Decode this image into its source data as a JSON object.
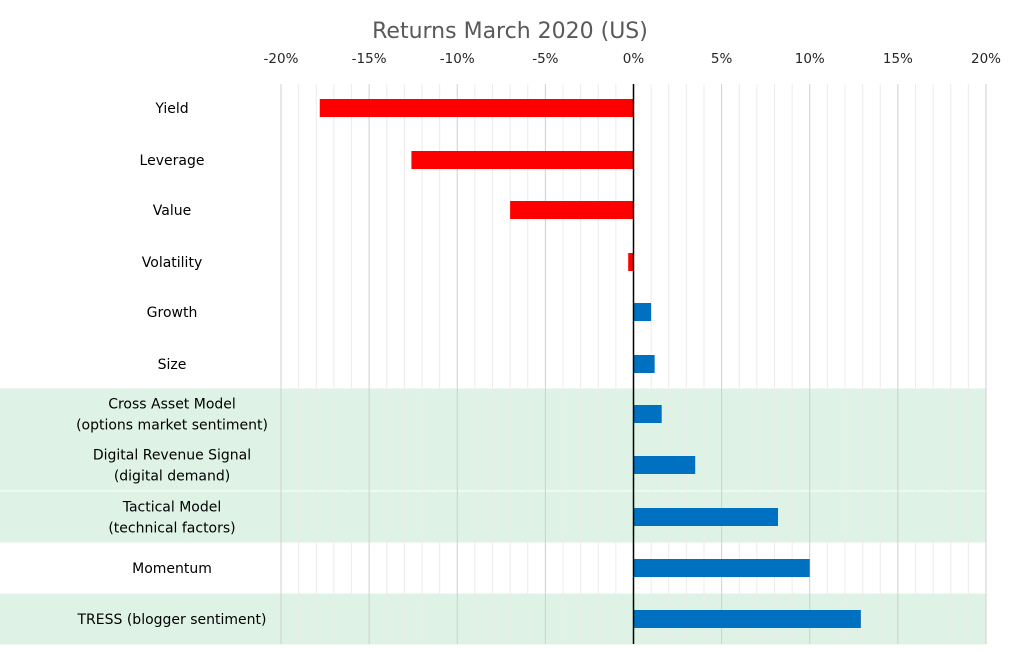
{
  "chart_data": {
    "type": "bar",
    "orientation": "horizontal",
    "title": "Returns March 2020 (US)",
    "xlabel": "",
    "ylabel": "",
    "xlim": [
      -20,
      20
    ],
    "xticks": [
      "-20%",
      "-15%",
      "-10%",
      "-5%",
      "0%",
      "5%",
      "10%",
      "15%",
      "20%"
    ],
    "xtick_values": [
      -20,
      -15,
      -10,
      -5,
      0,
      5,
      10,
      15,
      20
    ],
    "grid": "vertical",
    "negative_color": "#ff0000",
    "positive_color": "#0070c0",
    "highlight_color": "#dff2e6",
    "categories": [
      {
        "lines": [
          "Yield"
        ],
        "value": -17.8,
        "highlight": false
      },
      {
        "lines": [
          "Leverage"
        ],
        "value": -12.6,
        "highlight": false
      },
      {
        "lines": [
          "Value"
        ],
        "value": -7.0,
        "highlight": false
      },
      {
        "lines": [
          "Volatility"
        ],
        "value": -0.3,
        "highlight": false
      },
      {
        "lines": [
          "Growth"
        ],
        "value": 1.0,
        "highlight": false
      },
      {
        "lines": [
          "Size"
        ],
        "value": 1.2,
        "highlight": false
      },
      {
        "lines": [
          "Cross Asset Model",
          "(options market sentiment)"
        ],
        "value": 1.6,
        "highlight": true
      },
      {
        "lines": [
          "Digital Revenue Signal",
          "(digital demand)"
        ],
        "value": 3.5,
        "highlight": true
      },
      {
        "lines": [
          "Tactical Model",
          "(technical factors)"
        ],
        "value": 8.2,
        "highlight": true
      },
      {
        "lines": [
          "Momentum"
        ],
        "value": 10.0,
        "highlight": false
      },
      {
        "lines": [
          "TRESS (blogger sentiment)"
        ],
        "value": 12.9,
        "highlight": true
      }
    ]
  }
}
